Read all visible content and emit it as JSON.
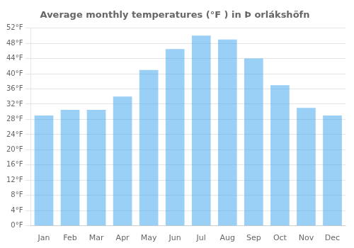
{
  "chart_data": {
    "type": "bar",
    "title": "Average monthly temperatures (°F ) in Þ orlákshöfn",
    "categories": [
      "Jan",
      "Feb",
      "Mar",
      "Apr",
      "May",
      "Jun",
      "Jul",
      "Aug",
      "Sep",
      "Oct",
      "Nov",
      "Dec"
    ],
    "values": [
      29.0,
      30.5,
      30.5,
      34.0,
      41.0,
      46.5,
      50.0,
      49.0,
      44.0,
      37.0,
      31.0,
      29.0
    ],
    "ylim": [
      0,
      52
    ],
    "yticks": [
      {
        "value": 0,
        "label": "0°F"
      },
      {
        "value": 4,
        "label": "4°F"
      },
      {
        "value": 8,
        "label": "8°F"
      },
      {
        "value": 12,
        "label": "12°F"
      },
      {
        "value": 16,
        "label": "16°F"
      },
      {
        "value": 20,
        "label": "20°F"
      },
      {
        "value": 24,
        "label": "24°F"
      },
      {
        "value": 28,
        "label": "28°F"
      },
      {
        "value": 32,
        "label": "32°F"
      },
      {
        "value": 36,
        "label": "36°F"
      },
      {
        "value": 40,
        "label": "40°F"
      },
      {
        "value": 44,
        "label": "44°F"
      },
      {
        "value": 48,
        "label": "48°F"
      },
      {
        "value": 52,
        "label": "52°F"
      }
    ],
    "grid": true
  }
}
